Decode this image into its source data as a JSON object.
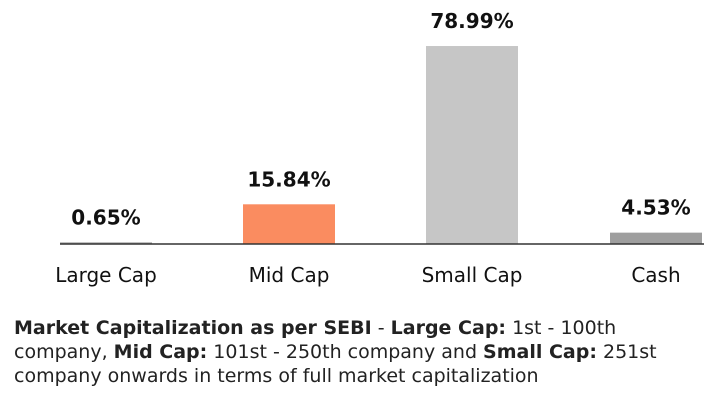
{
  "chart_data": {
    "type": "bar",
    "categories": [
      "Large Cap",
      "Mid Cap",
      "Small Cap",
      "Cash"
    ],
    "values": [
      0.65,
      15.84,
      78.99,
      4.53
    ],
    "value_labels": [
      "0.65%",
      "15.84%",
      "78.99%",
      "4.53%"
    ],
    "colors": [
      "#9e9e9e",
      "#fa8c60",
      "#c6c6c6",
      "#9e9e9e"
    ],
    "ylim": [
      0,
      80
    ],
    "grid": false,
    "legend": "none"
  },
  "note": {
    "p1": "Market Capitalization as per SEBI",
    "p2": " - ",
    "p3": "Large Cap:",
    "p4": " 1st - 100th company, ",
    "p5": "Mid Cap:",
    "p6": " 101st - 250th company and ",
    "p7": "Small Cap:",
    "p8": " 251st company onwards in terms of full market capitalization"
  }
}
